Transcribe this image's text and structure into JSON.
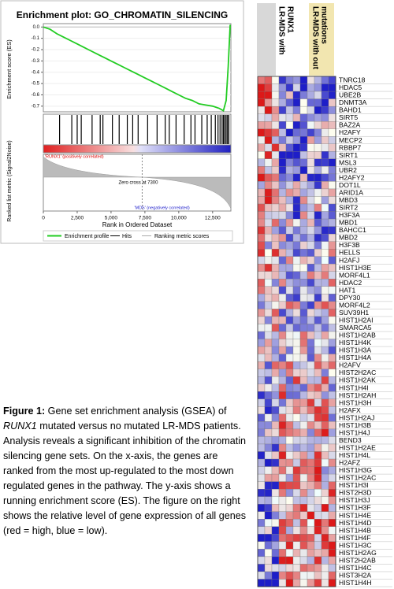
{
  "chart_data": {
    "type": "line",
    "title": "Enrichment plot: GO_CHROMATIN_SILENCING",
    "y_label": "Enrichment score (ES)",
    "y2_label": "Ranked list metric (Signal2Noise)",
    "x_label": "Rank in Ordered Dataset",
    "x": [
      0,
      500,
      1000,
      1500,
      2000,
      2500,
      3000,
      3500,
      4000,
      4500,
      5000,
      5500,
      6000,
      6500,
      7000,
      7500,
      8000,
      8500,
      9000,
      9500,
      10000,
      10500,
      11000,
      11500,
      12000,
      12500,
      13000,
      13300,
      13500,
      13650,
      13800
    ],
    "series": [
      {
        "name": "Enrichment profile",
        "color": "#22cc22",
        "values": [
          0,
          -0.02,
          -0.06,
          -0.09,
          -0.12,
          -0.15,
          -0.18,
          -0.21,
          -0.24,
          -0.27,
          -0.3,
          -0.33,
          -0.36,
          -0.39,
          -0.42,
          -0.45,
          -0.48,
          -0.51,
          -0.54,
          -0.57,
          -0.6,
          -0.63,
          -0.65,
          -0.68,
          -0.69,
          -0.7,
          -0.72,
          -0.74,
          -0.65,
          -0.35,
          0.02
        ]
      }
    ],
    "hits_label": "Hits",
    "metric_label": "Ranking metric scores",
    "hits": [
      1200,
      2100,
      2500,
      2800,
      3600,
      4200,
      4400,
      5100,
      5600,
      6200,
      6600,
      7000,
      7700,
      8400,
      9000,
      9300,
      9800,
      10400,
      10900,
      11200,
      11700,
      12100,
      12400,
      12700,
      12900,
      13050,
      13200,
      13300,
      13400,
      13500,
      13600,
      13700
    ],
    "zero_cross": 7300,
    "zero_cross_label": "Zero cross at 7300",
    "positive_label": "'RUNX1' (positively correlated)",
    "negative_label": "'MDS' (negatively correlated)",
    "xlim": [
      0,
      13850
    ],
    "ylim": [
      -0.75,
      0.03
    ],
    "xticks": [
      0,
      {
        "value": 2500,
        "label": "2,500"
      },
      {
        "value": 5000,
        "label": "5,000"
      },
      {
        "value": 7500,
        "label": "7,500"
      },
      {
        "value": 10000,
        "label": "10,000"
      },
      {
        "value": 12500,
        "label": "12,500"
      }
    ],
    "yticks": [
      {
        "value": 0,
        "label": "0.0"
      },
      -0.1,
      -0.2,
      -0.3,
      -0.4,
      -0.5,
      -0.6,
      -0.7
    ]
  },
  "heatmap": {
    "group1_header": [
      "LR-MDS with",
      "RUNX1"
    ],
    "group2_header": [
      "LR-MDS with out",
      "mutations"
    ],
    "genes": [
      "TNRC18",
      "HDAC5",
      "UBE2B",
      "DNMT3A",
      "BAHD1",
      "SIRT5",
      "BAZ2A",
      "H2AFY",
      "MECP2",
      "RBBP7",
      "SIRT1",
      "MSL3",
      "UBR2",
      "H2AFY2",
      "DOT1L",
      "ARID1A",
      "MBD3",
      "SIRT2",
      "H3F3A",
      "MBD1",
      "BAHCC1",
      "MBD2",
      "H3F3B",
      "HELLS",
      "H2AFJ",
      "HIST1H3E",
      "MORF4L1",
      "HDAC2",
      "HAT1",
      "DPY30",
      "MORF4L2",
      "SUV39H1",
      "HIST1H2AI",
      "SMARCA5",
      "HIST1H2AB",
      "HIST1H4K",
      "HIST1H3A",
      "HIST1H4A",
      "H2AFV",
      "HIST2H2AC",
      "HIST1H2AK",
      "HIST1H4I",
      "HIST1H2AH",
      "HIST1H3H",
      "H2AFX",
      "HIST1H2AJ",
      "HIST1H3B",
      "HIST1H4J",
      "BEND3",
      "HIST1H2AE",
      "HIST1H4L",
      "H2AFZ",
      "HIST1H3G",
      "HIST1H2AC",
      "HIST1H3I",
      "HIST2H3D",
      "HIST1H3J",
      "HIST1H3F",
      "HIST1H4E",
      "HIST1H4D",
      "HIST1H4B",
      "HIST1H4F",
      "HIST1H3C",
      "HIST1H2AG",
      "HIST2H2AB",
      "HIST1H4C",
      "HIST3H2A",
      "HIST1H4H"
    ]
  },
  "caption": {
    "label": "Figure 1:",
    "text_before": "  Gene set enrichment analysis (GSEA) of ",
    "italic": "RUNX1",
    "text_after": " mutated versus no mutated LR-MDS patients.  Analysis reveals a significant inhibition of the chromatin silencing gene sets. On the x-axis, the genes are ranked from the most up-regulated to the most down regulated genes in the pathway. The y-axis shows a running enrichment score (ES). The figure on the right shows the relative level of gene expression of all genes (red = high, blue = low)."
  }
}
